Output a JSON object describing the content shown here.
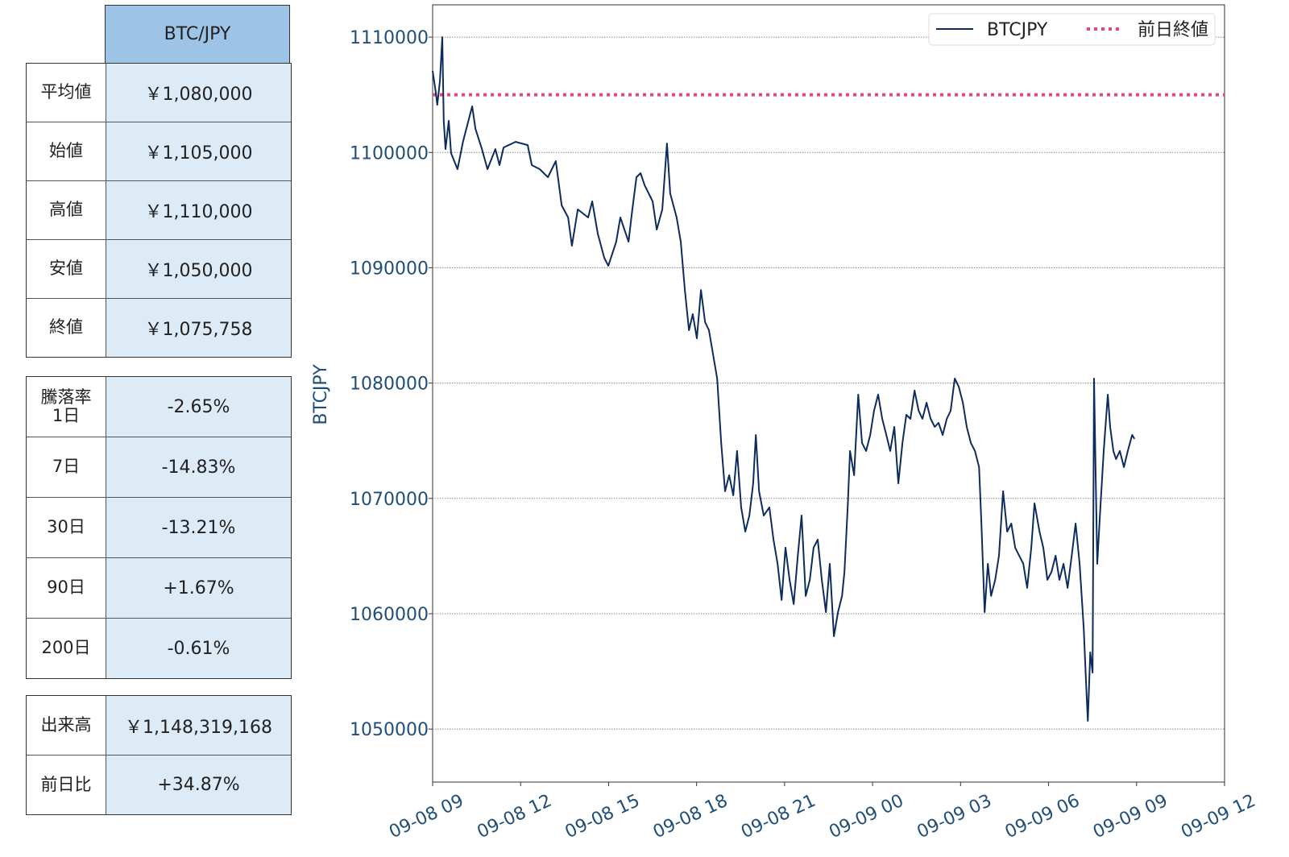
{
  "table_summary": {
    "header": "BTC/JPY",
    "rows": [
      {
        "label": "平均値",
        "value": "￥1,080,000"
      },
      {
        "label": "始値",
        "value": "￥1,105,000"
      },
      {
        "label": "高値",
        "value": "￥1,110,000"
      },
      {
        "label": "安値",
        "value": "￥1,050,000"
      },
      {
        "label": "終値",
        "value": "￥1,075,758"
      }
    ]
  },
  "table_change": {
    "rows": [
      {
        "label": "騰落率\n1日",
        "value": "-2.65%"
      },
      {
        "label": "7日",
        "value": "-14.83%"
      },
      {
        "label": "30日",
        "value": "-13.21%"
      },
      {
        "label": "90日",
        "value": "+1.67%"
      },
      {
        "label": "200日",
        "value": "-0.61%"
      }
    ]
  },
  "table_volume": {
    "rows": [
      {
        "label": "出来高",
        "value": "￥1,148,319,168"
      },
      {
        "label": "前日比",
        "value": "+34.87%"
      }
    ]
  },
  "chart_data": {
    "type": "line",
    "title": "",
    "xlabel": "",
    "ylabel": "BTCJPY",
    "x_unit": "hours since 09-08 09:00",
    "xlim": [
      0,
      27
    ],
    "ylim": [
      1045400,
      1112800
    ],
    "grid": "horizontal dotted",
    "legend_placement": "top-right",
    "x_ticks": [
      {
        "value": 0,
        "label": "09-08 09"
      },
      {
        "value": 3,
        "label": "09-08 12"
      },
      {
        "value": 6,
        "label": "09-08 15"
      },
      {
        "value": 9,
        "label": "09-08 18"
      },
      {
        "value": 12,
        "label": "09-08 21"
      },
      {
        "value": 15,
        "label": "09-09 00"
      },
      {
        "value": 18,
        "label": "09-09 03"
      },
      {
        "value": 21,
        "label": "09-09 06"
      },
      {
        "value": 24,
        "label": "09-09 09"
      },
      {
        "value": 27,
        "label": "09-09 12"
      }
    ],
    "y_ticks": [
      {
        "value": 1050000,
        "label": "1050000"
      },
      {
        "value": 1060000,
        "label": "1060000"
      },
      {
        "value": 1070000,
        "label": "1070000"
      },
      {
        "value": 1080000,
        "label": "1080000"
      },
      {
        "value": 1090000,
        "label": "1090000"
      },
      {
        "value": 1100000,
        "label": "1100000"
      },
      {
        "value": 1110000,
        "label": "1110000"
      }
    ],
    "colors": {
      "series": "#0d2b5e",
      "reference": "#e8457a",
      "tick": "#1f4e79"
    },
    "series": [
      {
        "name": "BTCJPY",
        "style": "solid",
        "points": [
          [
            0.0,
            1107070
          ],
          [
            0.11,
            1105180
          ],
          [
            0.16,
            1104130
          ],
          [
            0.25,
            1106230
          ],
          [
            0.33,
            1110000
          ],
          [
            0.38,
            1102740
          ],
          [
            0.44,
            1100290
          ],
          [
            0.55,
            1102740
          ],
          [
            0.63,
            1099940
          ],
          [
            0.85,
            1098550
          ],
          [
            1.04,
            1100990
          ],
          [
            1.35,
            1104000
          ],
          [
            1.46,
            1102040
          ],
          [
            1.68,
            1100290
          ],
          [
            1.87,
            1098550
          ],
          [
            2.14,
            1100290
          ],
          [
            2.28,
            1098900
          ],
          [
            2.42,
            1100430
          ],
          [
            2.83,
            1100920
          ],
          [
            3.24,
            1100640
          ],
          [
            3.38,
            1098900
          ],
          [
            3.65,
            1098550
          ],
          [
            3.93,
            1097850
          ],
          [
            4.2,
            1099250
          ],
          [
            4.4,
            1095410
          ],
          [
            4.62,
            1094360
          ],
          [
            4.75,
            1091910
          ],
          [
            4.95,
            1095060
          ],
          [
            5.3,
            1094360
          ],
          [
            5.44,
            1095760
          ],
          [
            5.63,
            1092960
          ],
          [
            5.85,
            1090870
          ],
          [
            5.99,
            1090170
          ],
          [
            6.26,
            1092260
          ],
          [
            6.4,
            1094360
          ],
          [
            6.68,
            1092260
          ],
          [
            6.81,
            1095060
          ],
          [
            6.95,
            1097850
          ],
          [
            7.09,
            1098200
          ],
          [
            7.23,
            1097150
          ],
          [
            7.5,
            1095760
          ],
          [
            7.64,
            1093310
          ],
          [
            7.83,
            1095060
          ],
          [
            7.99,
            1100780
          ],
          [
            8.1,
            1096450
          ],
          [
            8.32,
            1094360
          ],
          [
            8.46,
            1092260
          ],
          [
            8.6,
            1088070
          ],
          [
            8.74,
            1084580
          ],
          [
            8.87,
            1085980
          ],
          [
            9.01,
            1083880
          ],
          [
            9.15,
            1088070
          ],
          [
            9.29,
            1085280
          ],
          [
            9.42,
            1084580
          ],
          [
            9.56,
            1082490
          ],
          [
            9.7,
            1080390
          ],
          [
            9.84,
            1074810
          ],
          [
            9.97,
            1070620
          ],
          [
            10.11,
            1072010
          ],
          [
            10.25,
            1070270
          ],
          [
            10.38,
            1074110
          ],
          [
            10.52,
            1069220
          ],
          [
            10.66,
            1067120
          ],
          [
            10.8,
            1068520
          ],
          [
            10.93,
            1071310
          ],
          [
            11.02,
            1075500
          ],
          [
            11.13,
            1070620
          ],
          [
            11.29,
            1068520
          ],
          [
            11.48,
            1069220
          ],
          [
            11.62,
            1066430
          ],
          [
            11.76,
            1064330
          ],
          [
            11.9,
            1061190
          ],
          [
            12.03,
            1065730
          ],
          [
            12.17,
            1062940
          ],
          [
            12.31,
            1060840
          ],
          [
            12.45,
            1065030
          ],
          [
            12.58,
            1068520
          ],
          [
            12.72,
            1061540
          ],
          [
            12.86,
            1062940
          ],
          [
            12.99,
            1065730
          ],
          [
            13.13,
            1066430
          ],
          [
            13.27,
            1062940
          ],
          [
            13.41,
            1060140
          ],
          [
            13.54,
            1064330
          ],
          [
            13.68,
            1058050
          ],
          [
            13.82,
            1060140
          ],
          [
            13.96,
            1061540
          ],
          [
            14.04,
            1063630
          ],
          [
            14.15,
            1069220
          ],
          [
            14.23,
            1074110
          ],
          [
            14.37,
            1072010
          ],
          [
            14.51,
            1079000
          ],
          [
            14.64,
            1074810
          ],
          [
            14.78,
            1074110
          ],
          [
            14.92,
            1075500
          ],
          [
            15.05,
            1077600
          ],
          [
            15.19,
            1079000
          ],
          [
            15.33,
            1076900
          ],
          [
            15.47,
            1075500
          ],
          [
            15.6,
            1074110
          ],
          [
            15.74,
            1076200
          ],
          [
            15.88,
            1071310
          ],
          [
            16.02,
            1074810
          ],
          [
            16.15,
            1077250
          ],
          [
            16.29,
            1076900
          ],
          [
            16.43,
            1079350
          ],
          [
            16.57,
            1077600
          ],
          [
            16.7,
            1076900
          ],
          [
            16.84,
            1078300
          ],
          [
            16.98,
            1076900
          ],
          [
            17.12,
            1076200
          ],
          [
            17.25,
            1076550
          ],
          [
            17.39,
            1075500
          ],
          [
            17.53,
            1076900
          ],
          [
            17.66,
            1077600
          ],
          [
            17.8,
            1080390
          ],
          [
            17.94,
            1079690
          ],
          [
            18.08,
            1078300
          ],
          [
            18.21,
            1076200
          ],
          [
            18.35,
            1074810
          ],
          [
            18.49,
            1074110
          ],
          [
            18.63,
            1072710
          ],
          [
            18.71,
            1067820
          ],
          [
            18.82,
            1060140
          ],
          [
            18.93,
            1064330
          ],
          [
            19.04,
            1061540
          ],
          [
            19.18,
            1062940
          ],
          [
            19.31,
            1065030
          ],
          [
            19.45,
            1070620
          ],
          [
            19.59,
            1067120
          ],
          [
            19.73,
            1067820
          ],
          [
            19.86,
            1065730
          ],
          [
            20.0,
            1065030
          ],
          [
            20.14,
            1064330
          ],
          [
            20.27,
            1062240
          ],
          [
            20.41,
            1065730
          ],
          [
            20.52,
            1069570
          ],
          [
            20.69,
            1067120
          ],
          [
            20.82,
            1065730
          ],
          [
            20.96,
            1062940
          ],
          [
            21.1,
            1063630
          ],
          [
            21.24,
            1065030
          ],
          [
            21.37,
            1062940
          ],
          [
            21.51,
            1064330
          ],
          [
            21.65,
            1062240
          ],
          [
            21.79,
            1065030
          ],
          [
            21.92,
            1067820
          ],
          [
            22.06,
            1064330
          ],
          [
            22.2,
            1058750
          ],
          [
            22.28,
            1053850
          ],
          [
            22.34,
            1050710
          ],
          [
            22.42,
            1056650
          ],
          [
            22.5,
            1054900
          ],
          [
            22.55,
            1080390
          ],
          [
            22.61,
            1071310
          ],
          [
            22.66,
            1064330
          ],
          [
            22.75,
            1068520
          ],
          [
            22.88,
            1074110
          ],
          [
            23.02,
            1079000
          ],
          [
            23.1,
            1076200
          ],
          [
            23.21,
            1074110
          ],
          [
            23.3,
            1073410
          ],
          [
            23.43,
            1074110
          ],
          [
            23.57,
            1072710
          ],
          [
            23.7,
            1074110
          ],
          [
            23.85,
            1075500
          ],
          [
            23.93,
            1075160
          ]
        ]
      },
      {
        "name": "前日終値",
        "style": "dotted",
        "value": 1105000
      }
    ]
  }
}
